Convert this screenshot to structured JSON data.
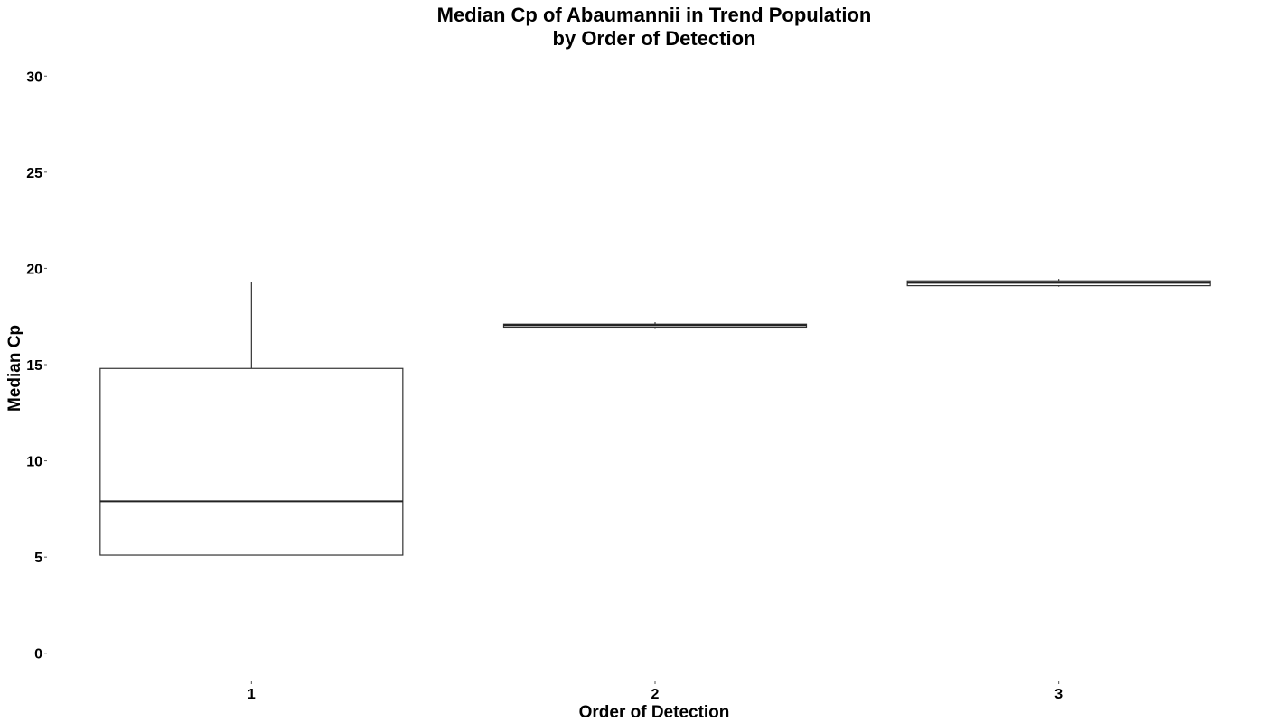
{
  "chart_data": {
    "type": "boxplot",
    "title": [
      "Median Cp of Abaumannii in Trend Population",
      "by Order of Detection"
    ],
    "xlabel": "Order of Detection",
    "ylabel": "Median Cp",
    "categories": [
      "1",
      "2",
      "3"
    ],
    "ylim": [
      -0.5,
      30.5
    ],
    "yticks": [
      0,
      5,
      10,
      15,
      20,
      25,
      30
    ],
    "grid": false,
    "boxes": [
      {
        "category": "1",
        "min": 5.1,
        "q1": 5.1,
        "median": 7.9,
        "q3": 14.8,
        "max": 19.3
      },
      {
        "category": "2",
        "min": 16.9,
        "q1": 16.95,
        "median": 17.05,
        "q3": 17.1,
        "max": 17.2
      },
      {
        "category": "3",
        "min": 19.05,
        "q1": 19.1,
        "median": 19.25,
        "q3": 19.35,
        "max": 19.45
      }
    ],
    "colors": {
      "box_fill": "#ffffff",
      "box_stroke": "#333333",
      "text": "#000000"
    }
  }
}
